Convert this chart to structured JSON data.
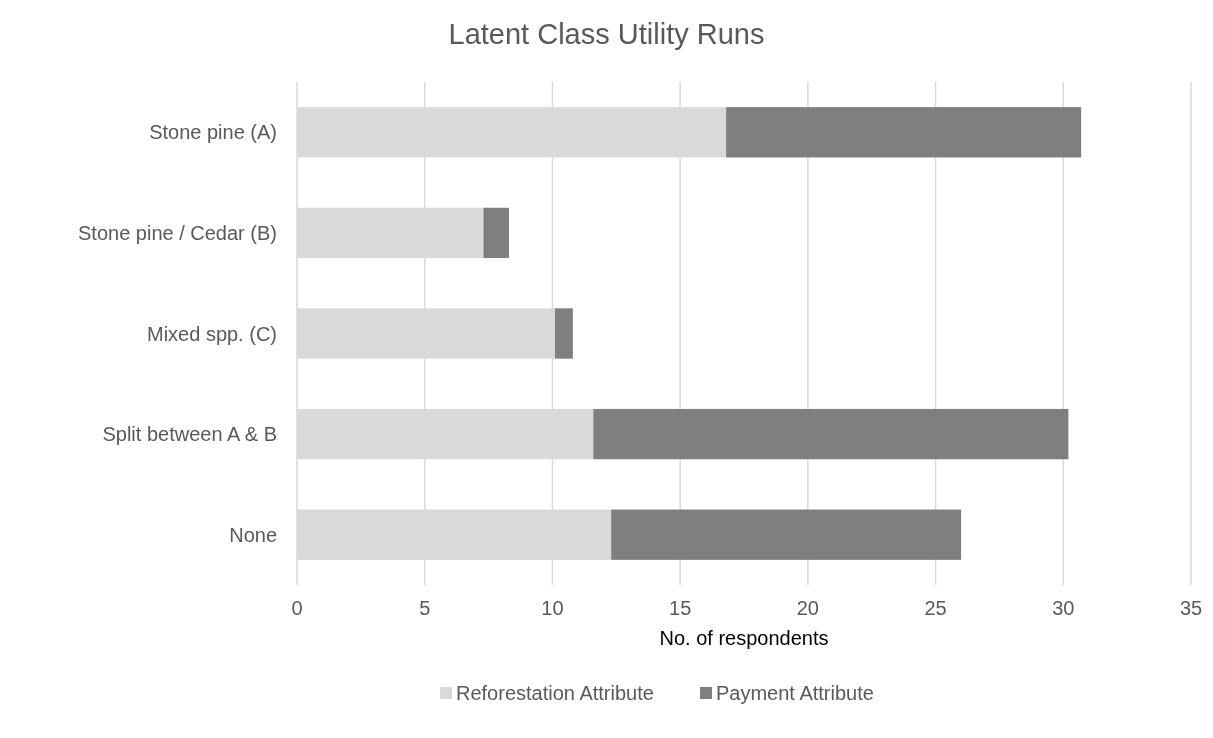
{
  "chart_data": {
    "type": "bar",
    "orientation": "horizontal",
    "stacked": true,
    "title": "Latent Class Utility Runs",
    "xlabel": "No. of respondents",
    "categories": [
      "Stone pine (A)",
      "Stone pine / Cedar (B)",
      "Mixed spp. (C)",
      "Split between A & B",
      "None"
    ],
    "series": [
      {
        "name": "Reforestation Attribute",
        "color": "#d9d9d9",
        "values": [
          16.8,
          7.3,
          10.1,
          11.6,
          12.3
        ]
      },
      {
        "name": "Payment Attribute",
        "color": "#7f7f7f",
        "values": [
          13.9,
          1.0,
          0.7,
          18.6,
          13.7
        ]
      }
    ],
    "xlim": [
      0,
      35
    ],
    "xticks": [
      0,
      5,
      10,
      15,
      20,
      25,
      30,
      35
    ],
    "grid": "x",
    "legend": "bottom"
  }
}
